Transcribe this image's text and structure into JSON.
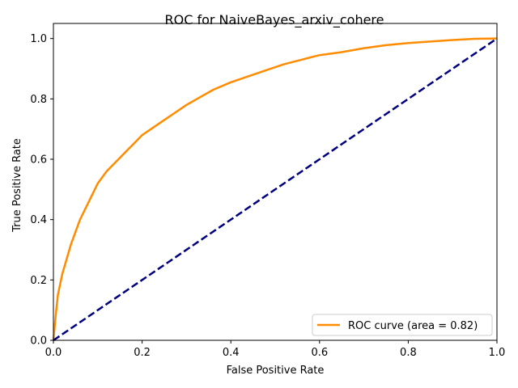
{
  "chart_data": {
    "type": "line",
    "title": "ROC for NaiveBayes_arxiv_cohere",
    "xlabel": "False Positive Rate",
    "ylabel": "True Positive Rate",
    "xlim": [
      0.0,
      1.0
    ],
    "ylim": [
      0.0,
      1.05
    ],
    "grid": false,
    "legend_placement": "lower-right",
    "x_ticks": [
      "0.0",
      "0.2",
      "0.4",
      "0.6",
      "0.8",
      "1.0"
    ],
    "y_ticks": [
      "0.0",
      "0.2",
      "0.4",
      "0.6",
      "0.8",
      "1.0"
    ],
    "x_tick_values": [
      0.0,
      0.2,
      0.4,
      0.6,
      0.8,
      1.0
    ],
    "y_tick_values": [
      0.0,
      0.2,
      0.4,
      0.6,
      0.8,
      1.0
    ],
    "series": [
      {
        "name": "ROC curve (area = 0.82)",
        "color": "#ff8c00",
        "line_style": "solid",
        "x": [
          0.0,
          0.005,
          0.01,
          0.02,
          0.03,
          0.04,
          0.05,
          0.06,
          0.07,
          0.08,
          0.09,
          0.1,
          0.11,
          0.12,
          0.14,
          0.16,
          0.18,
          0.2,
          0.22,
          0.25,
          0.27,
          0.3,
          0.33,
          0.36,
          0.4,
          0.44,
          0.48,
          0.52,
          0.56,
          0.6,
          0.65,
          0.7,
          0.75,
          0.8,
          0.85,
          0.9,
          0.95,
          1.0
        ],
        "y": [
          0.0,
          0.08,
          0.15,
          0.22,
          0.27,
          0.32,
          0.36,
          0.4,
          0.43,
          0.46,
          0.49,
          0.52,
          0.54,
          0.56,
          0.59,
          0.62,
          0.65,
          0.68,
          0.7,
          0.73,
          0.75,
          0.78,
          0.805,
          0.83,
          0.855,
          0.875,
          0.895,
          0.915,
          0.93,
          0.945,
          0.955,
          0.968,
          0.978,
          0.985,
          0.99,
          0.995,
          0.999,
          1.0
        ]
      },
      {
        "name": "",
        "color": "#000080",
        "line_style": "dashed",
        "x": [
          0.0,
          1.0
        ],
        "y": [
          0.0,
          1.0
        ]
      }
    ]
  }
}
